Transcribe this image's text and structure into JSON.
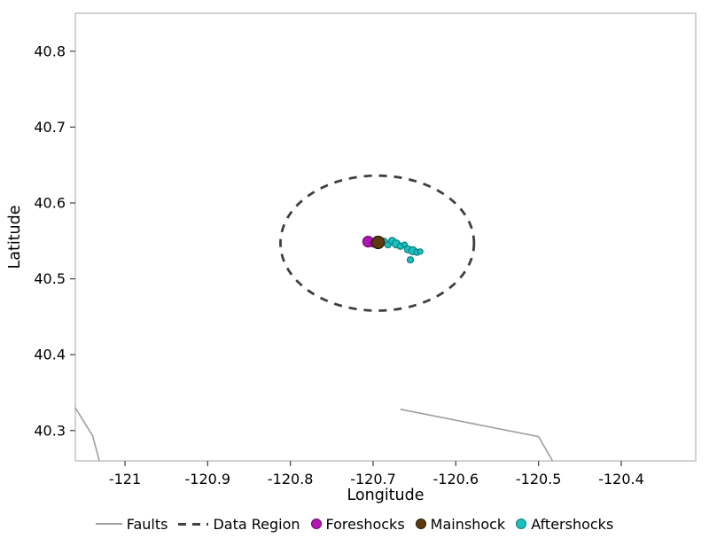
{
  "figure": {
    "background": "#ffffff",
    "border_color": "#c6c6c6",
    "tick_color": "#404040",
    "text_color": "#000000"
  },
  "chart_data": {
    "type": "scatter",
    "title": "",
    "xlabel": "Longitude",
    "ylabel": "Latitude",
    "xlim": [
      -121.06,
      -120.31
    ],
    "ylim": [
      40.26,
      40.85
    ],
    "grid": false,
    "xticks": [
      -121.0,
      -120.9,
      -120.8,
      -120.7,
      -120.6,
      -120.5,
      -120.4
    ],
    "xtick_labels": [
      "-121",
      "-120.9",
      "-120.8",
      "-120.7",
      "-120.6",
      "-120.5",
      "-120.4"
    ],
    "yticks": [
      40.3,
      40.4,
      40.5,
      40.6,
      40.7,
      40.8
    ],
    "ytick_labels": [
      "40.3",
      "40.4",
      "40.5",
      "40.6",
      "40.7",
      "40.8"
    ],
    "data_region_ellipse": {
      "center": [
        -120.695,
        40.547
      ],
      "rx": 0.117,
      "ry": 0.089,
      "color": "#3f3f3f",
      "stroke_width": 2.8,
      "dash": "9 8"
    },
    "faults": {
      "color": "#9e9e9e",
      "stroke_width": 1.6,
      "lines": [
        [
          [
            -121.06,
            40.33
          ],
          [
            -121.039,
            40.293
          ],
          [
            -121.031,
            40.26
          ]
        ],
        [
          [
            -120.667,
            40.328
          ],
          [
            -120.5,
            40.292
          ],
          [
            -120.483,
            40.26
          ]
        ]
      ]
    },
    "series": [
      {
        "name": "Foreshocks",
        "color": "#b316b3",
        "stroke": "#6e0c6e",
        "points": [
          {
            "x": -120.706,
            "y": 40.549,
            "r": 6.0
          },
          {
            "x": -120.7,
            "y": 40.546,
            "r": 3.5
          }
        ]
      },
      {
        "name": "Aftershocks",
        "color": "#1bbfbf",
        "stroke": "#0b7f7f",
        "points": [
          {
            "x": -120.687,
            "y": 40.549,
            "r": 4.0
          },
          {
            "x": -120.682,
            "y": 40.545,
            "r": 3.5
          },
          {
            "x": -120.677,
            "y": 40.55,
            "r": 4.0
          },
          {
            "x": -120.672,
            "y": 40.546,
            "r": 4.5
          },
          {
            "x": -120.667,
            "y": 40.543,
            "r": 3.5
          },
          {
            "x": -120.662,
            "y": 40.545,
            "r": 3.0
          },
          {
            "x": -120.658,
            "y": 40.539,
            "r": 4.0
          },
          {
            "x": -120.652,
            "y": 40.537,
            "r": 4.5
          },
          {
            "x": -120.647,
            "y": 40.535,
            "r": 3.5
          },
          {
            "x": -120.655,
            "y": 40.525,
            "r": 3.5
          },
          {
            "x": -120.643,
            "y": 40.536,
            "r": 3.0
          }
        ]
      },
      {
        "name": "Mainshock",
        "color": "#5c3a10",
        "stroke": "#2b1a05",
        "points": [
          {
            "x": -120.694,
            "y": 40.548,
            "r": 7.0
          }
        ]
      }
    ],
    "legend": [
      {
        "label": "Faults",
        "marker": "line",
        "color": "#9e9e9e",
        "stroke": "#9e9e9e"
      },
      {
        "label": "Data Region",
        "marker": "dashed-line",
        "color": "#3f3f3f",
        "stroke": "#3f3f3f"
      },
      {
        "label": "Foreshocks",
        "marker": "dot",
        "color": "#b316b3",
        "stroke": "#6e0c6e"
      },
      {
        "label": "Mainshock",
        "marker": "dot",
        "color": "#5c3a10",
        "stroke": "#2b1a05"
      },
      {
        "label": "Aftershocks",
        "marker": "dot",
        "color": "#1bbfbf",
        "stroke": "#0b7f7f"
      }
    ]
  }
}
